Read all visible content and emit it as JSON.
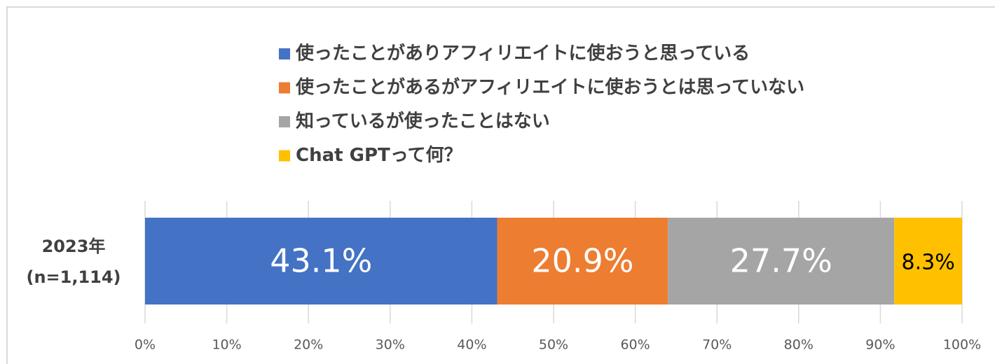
{
  "chart_data": {
    "type": "stacked-bar-horizontal",
    "categories": [
      "2023年\n(n=1,114)"
    ],
    "series": [
      {
        "name": "使ったことがありアフィリエイトに使おうと思っている",
        "color": "#4472c4",
        "values": [
          43.1
        ],
        "value_labels": [
          "43.1%"
        ]
      },
      {
        "name": "使ったことがあるがアフィリエイトに使おうとは思っていない",
        "color": "#ed7d31",
        "values": [
          20.9
        ],
        "value_labels": [
          "20.9%"
        ]
      },
      {
        "name": "知っているが使ったことはない",
        "color": "#a5a5a5",
        "values": [
          27.7
        ],
        "value_labels": [
          "27.7%"
        ]
      },
      {
        "name": "Chat GPTって何？",
        "color": "#ffc000",
        "values": [
          8.3
        ],
        "value_labels": [
          "8.3%"
        ]
      }
    ],
    "xlim": [
      0,
      100
    ],
    "xticks": [
      {
        "value": 0,
        "label": "0%"
      },
      {
        "value": 10,
        "label": "10%"
      },
      {
        "value": 20,
        "label": "20%"
      },
      {
        "value": 30,
        "label": "30%"
      },
      {
        "value": 40,
        "label": "40%"
      },
      {
        "value": 50,
        "label": "50%"
      },
      {
        "value": 60,
        "label": "60%"
      },
      {
        "value": 70,
        "label": "70%"
      },
      {
        "value": 80,
        "label": "80%"
      },
      {
        "value": 90,
        "label": "90%"
      },
      {
        "value": 100,
        "label": "100%"
      }
    ],
    "grid": true,
    "legend": "top"
  }
}
